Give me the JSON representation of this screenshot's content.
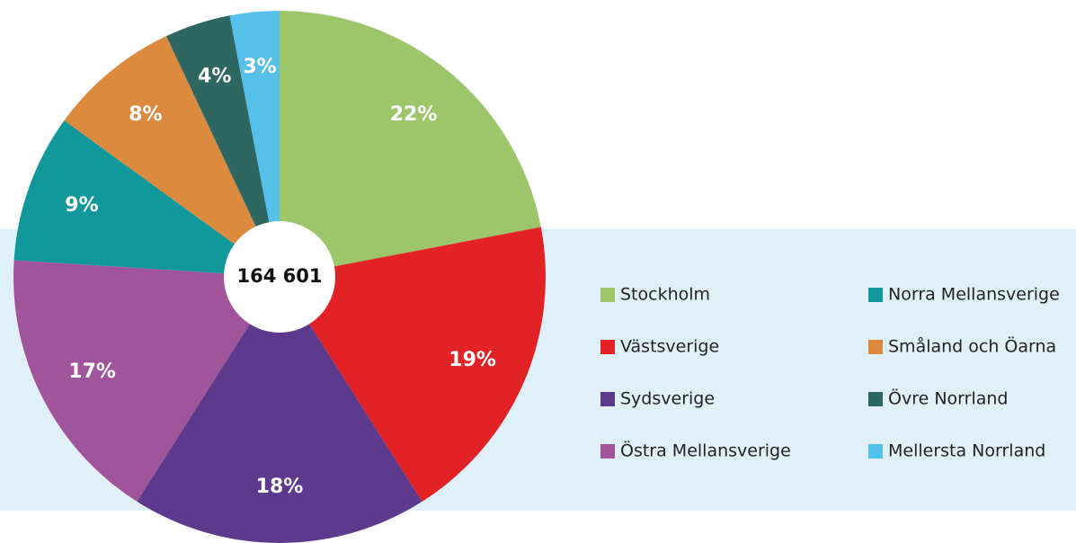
{
  "chart_data": {
    "type": "pie",
    "center_text": "164 601",
    "categories": [
      "Stockholm",
      "Västsverige",
      "Sydsverige",
      "Östra Mellansverige",
      "Norra Mellansverige",
      "Småland och Öarna",
      "Övre Norrland",
      "Mellersta Norrland"
    ],
    "values": [
      22,
      19,
      18,
      17,
      9,
      8,
      4,
      3
    ],
    "value_labels": [
      "22%",
      "19%",
      "18%",
      "17%",
      "9%",
      "8%",
      "4%",
      "3%"
    ],
    "colors": [
      "#9dc66b",
      "#e32226",
      "#5e3a8c",
      "#a05499",
      "#11989a",
      "#db8a3e",
      "#2e6762",
      "#55c1ea"
    ],
    "legend": "right"
  }
}
